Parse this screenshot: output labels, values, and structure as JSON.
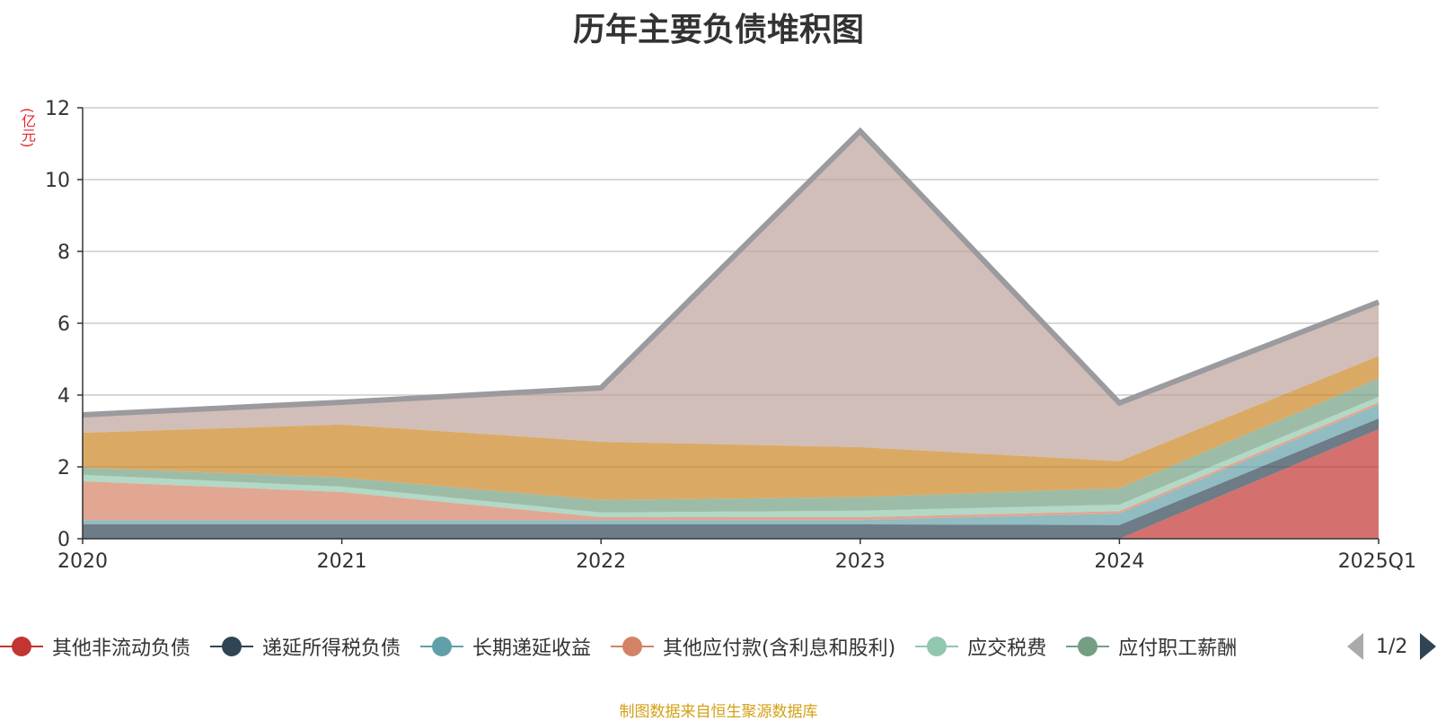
{
  "chart_data": {
    "type": "area",
    "title": "历年主要负债堆积图",
    "ylabel": "(亿元)",
    "x": [
      "2020",
      "2021",
      "2022",
      "2023",
      "2024",
      "2025Q1"
    ],
    "ylim": [
      0,
      12
    ],
    "yticks": [
      0,
      2,
      4,
      6,
      8,
      10,
      12
    ],
    "grid": true,
    "stacked": true,
    "legend_position": "bottom",
    "series": [
      {
        "name": "其他非流动负债",
        "color": "#c23531",
        "values": [
          0,
          0,
          0,
          0,
          0,
          3.05
        ]
      },
      {
        "name": "递延所得税负债",
        "color": "#2f4554",
        "values": [
          0.4,
          0.4,
          0.4,
          0.4,
          0.38,
          0.3
        ]
      },
      {
        "name": "长期递延收益",
        "color": "#61a0a8",
        "values": [
          0.12,
          0.12,
          0.12,
          0.12,
          0.32,
          0.38
        ]
      },
      {
        "name": "其他应付款(含利息和股利)",
        "color": "#d48265",
        "values": [
          1.08,
          0.78,
          0.08,
          0.08,
          0.07,
          0.07
        ]
      },
      {
        "name": "应交税费",
        "color": "#91c7ae",
        "values": [
          0.18,
          0.15,
          0.13,
          0.18,
          0.18,
          0.15
        ]
      },
      {
        "name": "应付职工薪酬",
        "color": "#749f83",
        "values": [
          0.2,
          0.25,
          0.35,
          0.38,
          0.46,
          0.52
        ]
      },
      {
        "name": "",
        "color": "#ca8622",
        "values": [
          0.97,
          1.48,
          1.62,
          1.39,
          0.75,
          0.62
        ]
      },
      {
        "name": "",
        "color": "#bda29a",
        "values": [
          0.5,
          0.62,
          1.5,
          8.8,
          1.62,
          1.5
        ]
      }
    ],
    "total_line_color": "#9a9a9f",
    "legend_page": "1/2"
  },
  "source_note": "制图数据来自恒生聚源数据库"
}
